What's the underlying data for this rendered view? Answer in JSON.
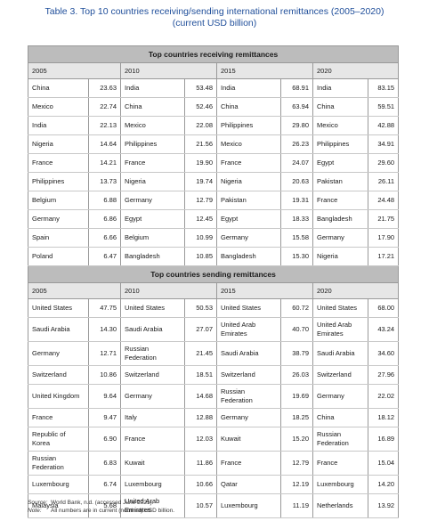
{
  "caption": {
    "line1": "Table 3. Top 10 countries receiving/sending international remittances (2005–2020)",
    "line2": "(current USD billion)"
  },
  "years": [
    "2005",
    "2010",
    "2015",
    "2020"
  ],
  "receiving": {
    "title": "Top countries receiving remittances",
    "rows": [
      [
        [
          "China",
          "23.63"
        ],
        [
          "India",
          "53.48"
        ],
        [
          "India",
          "68.91"
        ],
        [
          "India",
          "83.15"
        ]
      ],
      [
        [
          "Mexico",
          "22.74"
        ],
        [
          "China",
          "52.46"
        ],
        [
          "China",
          "63.94"
        ],
        [
          "China",
          "59.51"
        ]
      ],
      [
        [
          "India",
          "22.13"
        ],
        [
          "Mexico",
          "22.08"
        ],
        [
          "Philippines",
          "29.80"
        ],
        [
          "Mexico",
          "42.88"
        ]
      ],
      [
        [
          "Nigeria",
          "14.64"
        ],
        [
          "Philippines",
          "21.56"
        ],
        [
          "Mexico",
          "26.23"
        ],
        [
          "Philippines",
          "34.91"
        ]
      ],
      [
        [
          "France",
          "14.21"
        ],
        [
          "France",
          "19.90"
        ],
        [
          "France",
          "24.07"
        ],
        [
          "Egypt",
          "29.60"
        ]
      ],
      [
        [
          "Philippines",
          "13.73"
        ],
        [
          "Nigeria",
          "19.74"
        ],
        [
          "Nigeria",
          "20.63"
        ],
        [
          "Pakistan",
          "26.11"
        ]
      ],
      [
        [
          "Belgium",
          "6.88"
        ],
        [
          "Germany",
          "12.79"
        ],
        [
          "Pakistan",
          "19.31"
        ],
        [
          "France",
          "24.48"
        ]
      ],
      [
        [
          "Germany",
          "6.86"
        ],
        [
          "Egypt",
          "12.45"
        ],
        [
          "Egypt",
          "18.33"
        ],
        [
          "Bangladesh",
          "21.75"
        ]
      ],
      [
        [
          "Spain",
          "6.66"
        ],
        [
          "Belgium",
          "10.99"
        ],
        [
          "Germany",
          "15.58"
        ],
        [
          "Germany",
          "17.90"
        ]
      ],
      [
        [
          "Poland",
          "6.47"
        ],
        [
          "Bangladesh",
          "10.85"
        ],
        [
          "Bangladesh",
          "15.30"
        ],
        [
          "Nigeria",
          "17.21"
        ]
      ]
    ]
  },
  "sending": {
    "title": "Top countries sending remittances",
    "rows": [
      [
        [
          "United States",
          "47.75"
        ],
        [
          "United States",
          "50.53"
        ],
        [
          "United States",
          "60.72"
        ],
        [
          "United States",
          "68.00"
        ]
      ],
      [
        [
          "Saudi Arabia",
          "14.30"
        ],
        [
          "Saudi Arabia",
          "27.07"
        ],
        [
          "United Arab Emirates",
          "40.70"
        ],
        [
          "United Arab Emirates",
          "43.24"
        ]
      ],
      [
        [
          "Germany",
          "12.71"
        ],
        [
          "Russian Federation",
          "21.45"
        ],
        [
          "Saudi Arabia",
          "38.79"
        ],
        [
          "Saudi Arabia",
          "34.60"
        ]
      ],
      [
        [
          "Switzerland",
          "10.86"
        ],
        [
          "Switzerland",
          "18.51"
        ],
        [
          "Switzerland",
          "26.03"
        ],
        [
          "Switzerland",
          "27.96"
        ]
      ],
      [
        [
          "United Kingdom",
          "9.64"
        ],
        [
          "Germany",
          "14.68"
        ],
        [
          "Russian Federation",
          "19.69"
        ],
        [
          "Germany",
          "22.02"
        ]
      ],
      [
        [
          "France",
          "9.47"
        ],
        [
          "Italy",
          "12.88"
        ],
        [
          "Germany",
          "18.25"
        ],
        [
          "China",
          "18.12"
        ]
      ],
      [
        [
          "Republic of Korea",
          "6.90"
        ],
        [
          "France",
          "12.03"
        ],
        [
          "Kuwait",
          "15.20"
        ],
        [
          "Russian Federation",
          "16.89"
        ]
      ],
      [
        [
          "Russian Federation",
          "6.83"
        ],
        [
          "Kuwait",
          "11.86"
        ],
        [
          "France",
          "12.79"
        ],
        [
          "France",
          "15.04"
        ]
      ],
      [
        [
          "Luxembourg",
          "6.74"
        ],
        [
          "Luxembourg",
          "10.66"
        ],
        [
          "Qatar",
          "12.19"
        ],
        [
          "Luxembourg",
          "14.20"
        ]
      ],
      [
        [
          "Malaysia",
          "5.68"
        ],
        [
          "United Arab Emirates",
          "10.57"
        ],
        [
          "Luxembourg",
          "11.19"
        ],
        [
          "Netherlands",
          "13.92"
        ]
      ]
    ]
  },
  "notes": {
    "source_key": "Source:",
    "source_text": "World Bank, n.d. (accessed June 2021).",
    "note_key": "Note:",
    "note_text": "All numbers are in current (nominal) USD billion."
  }
}
